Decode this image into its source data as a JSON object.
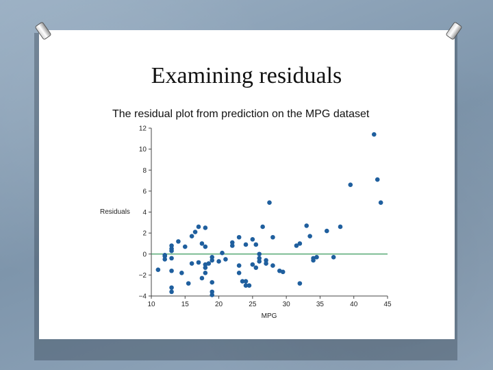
{
  "slide": {
    "title": "Examining residuals",
    "subtitle": "The residual plot from prediction on the MPG dataset"
  },
  "chart_data": {
    "type": "scatter",
    "title": "",
    "xlabel": "MPG",
    "ylabel": "Residuals",
    "xlim": [
      10,
      45
    ],
    "ylim": [
      -4,
      12
    ],
    "xticks": [
      10,
      15,
      20,
      25,
      30,
      35,
      40,
      45
    ],
    "yticks": [
      -4,
      -2,
      0,
      2,
      4,
      6,
      8,
      10,
      12
    ],
    "reference_line": 0,
    "grid": false,
    "colors": {
      "points": "#1f5f9e",
      "reference_line": "#3a9a5c",
      "axis": "#444444"
    },
    "points": [
      [
        11,
        -1.5
      ],
      [
        12,
        -0.2
      ],
      [
        12,
        -0.5
      ],
      [
        12,
        -0.1
      ],
      [
        13,
        0.8
      ],
      [
        13,
        0.5
      ],
      [
        13,
        0.3
      ],
      [
        13,
        -0.4
      ],
      [
        13,
        -1.6
      ],
      [
        13,
        -3.2
      ],
      [
        13,
        -3.6
      ],
      [
        14,
        1.2
      ],
      [
        14.5,
        -1.8
      ],
      [
        15,
        0.7
      ],
      [
        15.5,
        -2.8
      ],
      [
        16,
        1.7
      ],
      [
        16,
        -0.9
      ],
      [
        16.5,
        2.1
      ],
      [
        17,
        2.6
      ],
      [
        17,
        -0.8
      ],
      [
        17.5,
        1.0
      ],
      [
        18,
        2.5
      ],
      [
        18,
        -1.0
      ],
      [
        18,
        -1.3
      ],
      [
        17.5,
        -2.3
      ],
      [
        18,
        -1.8
      ],
      [
        18,
        0.7
      ],
      [
        18.5,
        -0.9
      ],
      [
        19,
        -0.3
      ],
      [
        19,
        -0.6
      ],
      [
        19,
        -2.7
      ],
      [
        19,
        -3.6
      ],
      [
        19,
        -3.9
      ],
      [
        20,
        -0.7
      ],
      [
        20.5,
        0.1
      ],
      [
        21,
        -0.5
      ],
      [
        22,
        0.8
      ],
      [
        22,
        1.1
      ],
      [
        23,
        -1.1
      ],
      [
        23,
        -1.8
      ],
      [
        23,
        1.6
      ],
      [
        23.5,
        -2.6
      ],
      [
        24,
        0.9
      ],
      [
        24,
        -2.6
      ],
      [
        24,
        -3.0
      ],
      [
        24.5,
        -3.0
      ],
      [
        25,
        1.4
      ],
      [
        25,
        -1.0
      ],
      [
        25.5,
        0.9
      ],
      [
        25.5,
        -1.3
      ],
      [
        26,
        -0.4
      ],
      [
        26,
        -0.7
      ],
      [
        26,
        0.0
      ],
      [
        26.5,
        2.6
      ],
      [
        27,
        -0.6
      ],
      [
        27,
        -0.9
      ],
      [
        27.5,
        4.9
      ],
      [
        28,
        1.6
      ],
      [
        28,
        -1.1
      ],
      [
        29,
        -1.6
      ],
      [
        29.5,
        -1.7
      ],
      [
        31.5,
        0.8
      ],
      [
        32,
        1.0
      ],
      [
        32,
        -2.8
      ],
      [
        33,
        2.7
      ],
      [
        33.5,
        1.7
      ],
      [
        34,
        -0.6
      ],
      [
        34,
        -0.4
      ],
      [
        34.5,
        -0.3
      ],
      [
        36,
        2.2
      ],
      [
        37,
        -0.3
      ],
      [
        38,
        2.6
      ],
      [
        39.5,
        6.6
      ],
      [
        43,
        11.4
      ],
      [
        43.5,
        7.1
      ],
      [
        44,
        4.9
      ]
    ]
  }
}
